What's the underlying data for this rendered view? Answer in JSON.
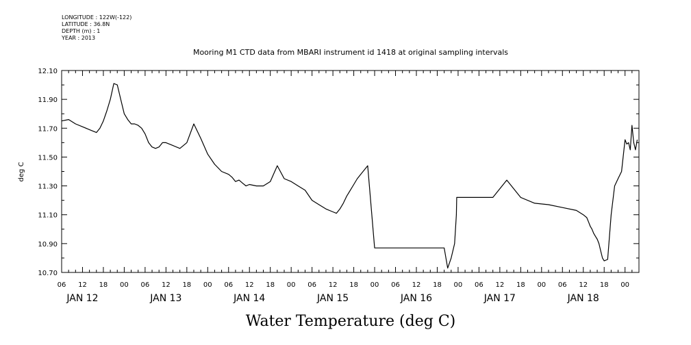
{
  "header": {
    "longitude": "LONGITUDE : 122W(-122)",
    "latitude": "LATITUDE : 36.8N",
    "depth": "DEPTH (m) : 1",
    "year": "YEAR : 2013"
  },
  "chart_data": {
    "type": "line",
    "title": "Mooring M1 CTD data from MBARI instrument id 1418 at original sampling intervals",
    "xlabel": "Water Temperature (deg C)",
    "ylabel": "deg C",
    "ylim": [
      10.7,
      12.1
    ],
    "y_ticks": [
      "10.70",
      "10.90",
      "11.10",
      "11.30",
      "11.50",
      "11.70",
      "11.90",
      "12.10"
    ],
    "x_range_hours": [
      0,
      166
    ],
    "x_hour_ticks": [
      "06",
      "12",
      "18",
      "00",
      "06",
      "12",
      "18",
      "00",
      "06",
      "12",
      "18",
      "00",
      "06",
      "12",
      "18",
      "00",
      "06",
      "12",
      "18",
      "00",
      "06",
      "12",
      "18",
      "00",
      "06",
      "12",
      "18",
      "00"
    ],
    "x_day_labels": [
      "JAN 12",
      "JAN 13",
      "JAN 14",
      "JAN 15",
      "JAN 16",
      "JAN 17",
      "JAN 18"
    ],
    "grid": false,
    "series": [
      {
        "name": "",
        "x": [
          0,
          2,
          4,
          6,
          8,
          10,
          11,
          12,
          13,
          14,
          15,
          16,
          17,
          18,
          19,
          20,
          21,
          22,
          23,
          24,
          25,
          26,
          27,
          28,
          29,
          30,
          32,
          34,
          36,
          38,
          40,
          42,
          44,
          46,
          48,
          49,
          50,
          51,
          52,
          53,
          54,
          56,
          58,
          60,
          62,
          64,
          66,
          68,
          70,
          72,
          74,
          76,
          78,
          79,
          80,
          81,
          82,
          83,
          84,
          85,
          86,
          88,
          90,
          92,
          94,
          96,
          98,
          100,
          102,
          104,
          106,
          108,
          110,
          111,
          112,
          113,
          113.5,
          113.6,
          116,
          120,
          124,
          128,
          132,
          136,
          140,
          144,
          148,
          150,
          151,
          151.5,
          152,
          152.5,
          153,
          153.5,
          154,
          154.5,
          155,
          155.5,
          156,
          157,
          158,
          159,
          160,
          161,
          162,
          162.5,
          163,
          163.5,
          164,
          164.5,
          165,
          165.5
        ],
        "y": [
          11.75,
          11.76,
          11.73,
          11.71,
          11.69,
          11.67,
          11.7,
          11.75,
          11.82,
          11.9,
          12.01,
          12.0,
          11.9,
          11.8,
          11.76,
          11.73,
          11.73,
          11.72,
          11.7,
          11.66,
          11.6,
          11.57,
          11.56,
          11.57,
          11.6,
          11.6,
          11.58,
          11.56,
          11.6,
          11.73,
          11.63,
          11.52,
          11.45,
          11.4,
          11.38,
          11.36,
          11.33,
          11.34,
          11.32,
          11.3,
          11.31,
          11.3,
          11.3,
          11.33,
          11.44,
          11.35,
          11.33,
          11.3,
          11.27,
          11.2,
          11.17,
          11.14,
          11.12,
          11.11,
          11.14,
          11.18,
          11.23,
          11.27,
          11.31,
          11.35,
          11.38,
          11.44,
          10.87,
          10.87,
          10.87,
          10.87,
          10.87,
          10.87,
          10.87,
          10.87,
          10.87,
          10.87,
          10.87,
          10.73,
          10.8,
          10.9,
          11.1,
          11.22,
          11.22,
          11.22,
          11.22,
          11.34,
          11.22,
          11.18,
          11.17,
          11.15,
          11.13,
          11.1,
          11.08,
          11.05,
          11.02,
          11.0,
          10.97,
          10.95,
          10.93,
          10.9,
          10.85,
          10.8,
          10.78,
          10.79,
          11.1,
          11.3,
          11.35,
          11.4,
          11.62,
          11.59,
          11.6,
          11.55,
          11.72,
          11.6,
          11.55,
          11.62
        ]
      }
    ]
  }
}
